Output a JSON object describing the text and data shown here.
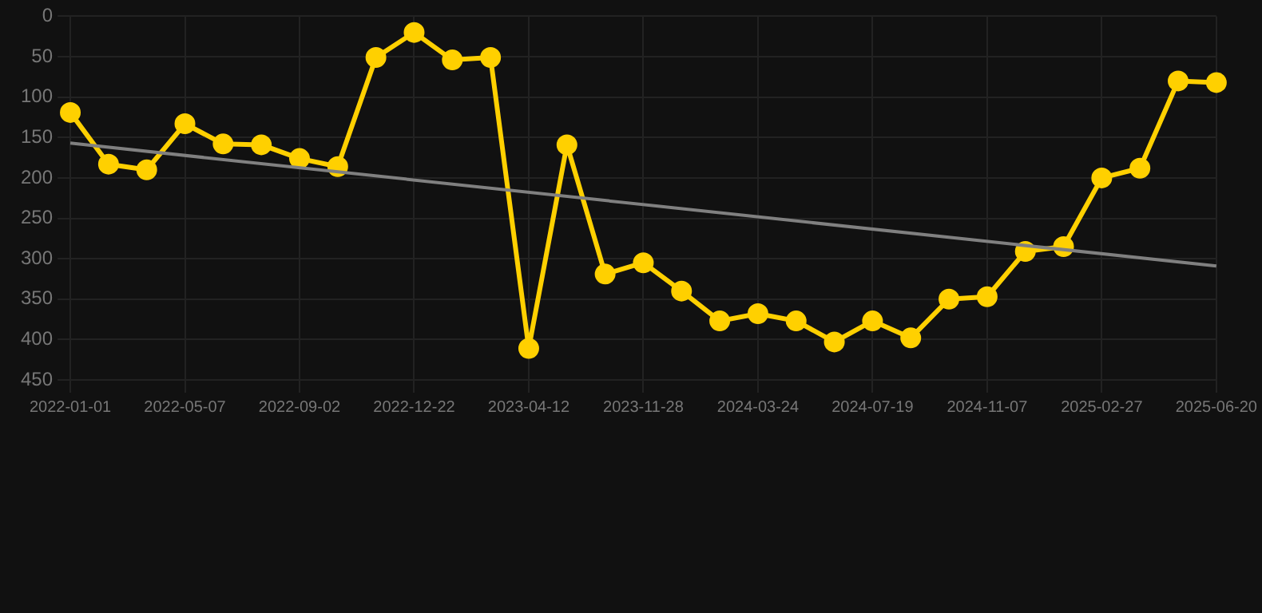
{
  "chart_data": {
    "type": "line",
    "categories": [
      "2022-01-01",
      null,
      null,
      "2022-05-07",
      null,
      null,
      "2022-09-02",
      null,
      null,
      "2022-12-22",
      null,
      null,
      "2023-04-12",
      null,
      null,
      "2023-11-28",
      null,
      null,
      "2024-03-24",
      null,
      null,
      "2024-07-19",
      null,
      null,
      "2024-11-07",
      null,
      null,
      "2025-02-27",
      null,
      null,
      "2025-06-20"
    ],
    "series": [
      {
        "type": "line",
        "color": "#ffd000",
        "marker": "circle",
        "values": [
          119,
          183,
          190,
          133,
          158,
          159,
          176,
          186,
          51,
          20,
          54,
          51,
          411,
          159,
          319,
          305,
          340,
          377,
          368,
          377,
          403,
          377,
          398,
          350,
          347,
          291,
          285,
          200,
          188,
          80,
          82
        ]
      },
      {
        "type": "line",
        "color": "#808080",
        "marker": "none",
        "values": [
          157,
          null,
          null,
          null,
          null,
          null,
          null,
          null,
          null,
          null,
          null,
          null,
          null,
          null,
          null,
          null,
          null,
          null,
          null,
          null,
          null,
          null,
          null,
          null,
          null,
          null,
          null,
          null,
          null,
          null,
          309
        ]
      }
    ],
    "ylim": [
      450,
      0
    ],
    "yticks": [
      0,
      50,
      100,
      150,
      200,
      250,
      300,
      350,
      400,
      450
    ],
    "grid": true,
    "legend": false
  }
}
